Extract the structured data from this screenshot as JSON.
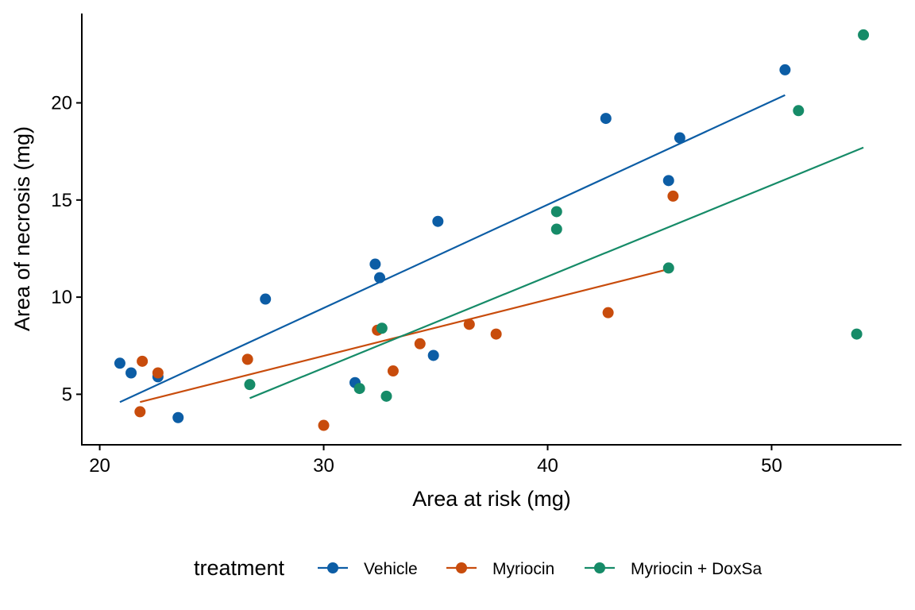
{
  "chart_data": {
    "type": "scatter",
    "title": "",
    "xlabel": "Area at risk (mg)",
    "ylabel": "Area of necrosis (mg)",
    "xlim": [
      19.2,
      55.8
    ],
    "ylim": [
      2.4,
      24.6
    ],
    "xticks": [
      20,
      30,
      40,
      50
    ],
    "yticks": [
      5,
      10,
      15,
      20
    ],
    "grid": false,
    "legend": {
      "title": "treatment",
      "position": "bottom"
    },
    "series": [
      {
        "name": "Vehicle",
        "color": "#0C5DA5",
        "points": [
          [
            20.9,
            6.6
          ],
          [
            21.4,
            6.1
          ],
          [
            22.6,
            5.9
          ],
          [
            23.5,
            3.8
          ],
          [
            27.4,
            9.9
          ],
          [
            31.4,
            5.6
          ],
          [
            32.3,
            11.7
          ],
          [
            32.5,
            11.0
          ],
          [
            34.9,
            7.0
          ],
          [
            35.1,
            13.9
          ],
          [
            42.6,
            19.2
          ],
          [
            45.4,
            16.0
          ],
          [
            45.9,
            18.2
          ],
          [
            50.6,
            21.7
          ]
        ],
        "fit": [
          [
            20.9,
            4.6
          ],
          [
            50.6,
            20.4
          ]
        ]
      },
      {
        "name": "Myriocin",
        "color": "#C84C0C",
        "points": [
          [
            21.8,
            4.1
          ],
          [
            21.9,
            6.7
          ],
          [
            22.6,
            6.1
          ],
          [
            26.6,
            6.8
          ],
          [
            30.0,
            3.4
          ],
          [
            32.4,
            8.3
          ],
          [
            33.1,
            6.2
          ],
          [
            34.3,
            7.6
          ],
          [
            36.5,
            8.6
          ],
          [
            37.7,
            8.1
          ],
          [
            42.7,
            9.2
          ],
          [
            45.6,
            15.2
          ]
        ],
        "fit": [
          [
            21.8,
            4.6
          ],
          [
            45.6,
            11.5
          ]
        ]
      },
      {
        "name": "Myriocin + DoxSa",
        "color": "#168B68",
        "points": [
          [
            26.7,
            5.5
          ],
          [
            31.6,
            5.3
          ],
          [
            32.6,
            8.4
          ],
          [
            32.8,
            4.9
          ],
          [
            40.4,
            14.4
          ],
          [
            40.4,
            13.5
          ],
          [
            45.4,
            11.5
          ],
          [
            51.2,
            19.6
          ],
          [
            53.8,
            8.1
          ],
          [
            54.1,
            23.5
          ]
        ],
        "fit": [
          [
            26.7,
            4.8
          ],
          [
            54.1,
            17.7
          ]
        ]
      }
    ]
  }
}
